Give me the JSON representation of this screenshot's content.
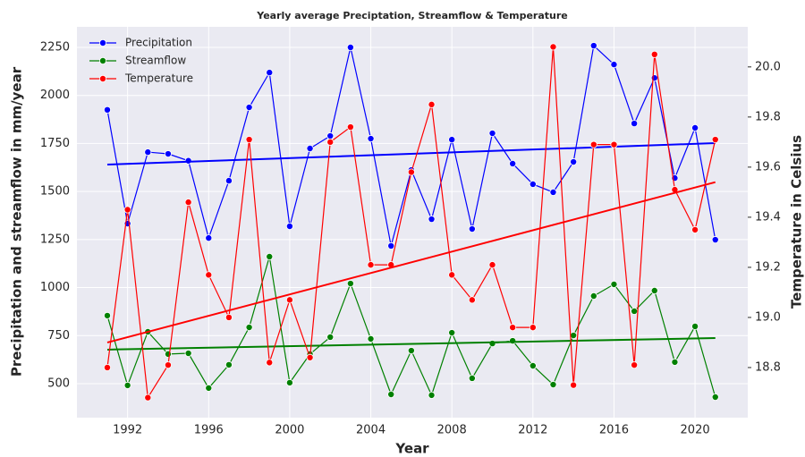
{
  "chart_data": {
    "type": "line",
    "title": "Yearly average Preciptation, Streamflow & Temperature",
    "xlabel": "Year",
    "ylabel": "Precipitation and streamflow in mm/year",
    "y2label": "Temperature in Celsius",
    "x": [
      1991,
      1992,
      1993,
      1994,
      1995,
      1996,
      1997,
      1998,
      1999,
      2000,
      2001,
      2002,
      2003,
      2004,
      2005,
      2006,
      2007,
      2008,
      2009,
      2010,
      2011,
      2012,
      2013,
      2014,
      2015,
      2016,
      2017,
      2018,
      2019,
      2020,
      2021
    ],
    "series": [
      {
        "name": "Precipitation",
        "color": "#0000ff",
        "axis": "y",
        "values": [
          1925,
          1333,
          1705,
          1696,
          1660,
          1258,
          1556,
          1938,
          2119,
          1319,
          1724,
          1789,
          2250,
          1775,
          1217,
          1612,
          1356,
          1770,
          1305,
          1803,
          1645,
          1538,
          1496,
          1654,
          2259,
          2161,
          1854,
          2091,
          1570,
          1831,
          1249
        ],
        "trend": {
          "x": [
            1991,
            2021
          ],
          "values": [
            1640,
            1752
          ]
        }
      },
      {
        "name": "Streamflow",
        "color": "#008000",
        "axis": "y",
        "values": [
          854,
          491,
          770,
          654,
          658,
          477,
          598,
          793,
          1161,
          505,
          654,
          742,
          1021,
          733,
          444,
          672,
          440,
          765,
          528,
          709,
          723,
          593,
          495,
          751,
          956,
          1017,
          877,
          984,
          612,
          798,
          430
        ],
        "trend": {
          "x": [
            1991,
            2021
          ],
          "values": [
            677,
            737
          ]
        }
      },
      {
        "name": "Temperature",
        "color": "#ff0000",
        "axis": "y2",
        "values": [
          18.8,
          19.43,
          18.68,
          18.81,
          19.46,
          19.17,
          19.0,
          19.71,
          18.82,
          19.07,
          18.84,
          19.7,
          19.76,
          19.21,
          19.21,
          19.58,
          19.85,
          19.17,
          19.07,
          19.21,
          18.96,
          18.96,
          20.08,
          18.73,
          19.69,
          19.69,
          18.81,
          20.05,
          19.51,
          19.35,
          19.71
        ],
        "trend": {
          "x": [
            1991,
            2021
          ],
          "values": [
            18.9,
            19.54
          ]
        }
      }
    ],
    "xlim": [
      1989.5,
      2022.6
    ],
    "xticks": [
      1992,
      1996,
      2000,
      2004,
      2008,
      2012,
      2016,
      2020
    ],
    "ylim": [
      323,
      2357
    ],
    "yticks": [
      500,
      750,
      1000,
      1250,
      1500,
      1750,
      2000,
      2250
    ],
    "y2lim": [
      18.6,
      20.16
    ],
    "y2ticks": [
      18.8,
      {
        "value": 19.0,
        "label": "19.0"
      },
      19.2,
      19.4,
      19.6,
      19.8,
      {
        "value": 20.0,
        "label": "20.0"
      }
    ],
    "grid": true,
    "legend": "upper left"
  }
}
